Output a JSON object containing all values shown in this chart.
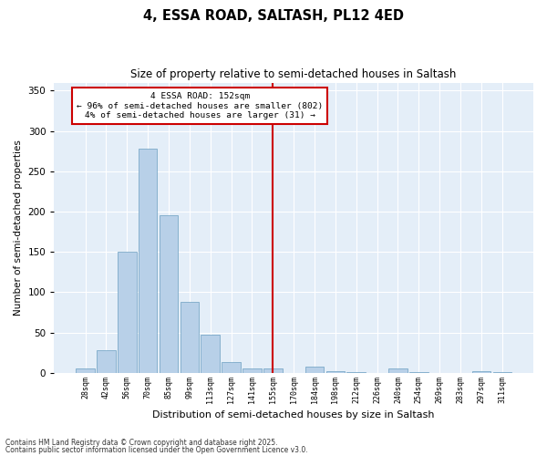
{
  "title": "4, ESSA ROAD, SALTASH, PL12 4ED",
  "subtitle": "Size of property relative to semi-detached houses in Saltash",
  "xlabel": "Distribution of semi-detached houses by size in Saltash",
  "ylabel": "Number of semi-detached properties",
  "annotation_title": "4 ESSA ROAD: 152sqm",
  "annotation_line1": "← 96% of semi-detached houses are smaller (802)",
  "annotation_line2": "4% of semi-detached houses are larger (31) →",
  "footnote1": "Contains HM Land Registry data © Crown copyright and database right 2025.",
  "footnote2": "Contains public sector information licensed under the Open Government Licence v3.0.",
  "bin_labels": [
    "28sqm",
    "42sqm",
    "56sqm",
    "70sqm",
    "85sqm",
    "99sqm",
    "113sqm",
    "127sqm",
    "141sqm",
    "155sqm",
    "170sqm",
    "184sqm",
    "198sqm",
    "212sqm",
    "226sqm",
    "240sqm",
    "254sqm",
    "269sqm",
    "283sqm",
    "297sqm",
    "311sqm"
  ],
  "bar_heights": [
    5,
    28,
    150,
    278,
    196,
    88,
    47,
    13,
    6,
    6,
    0,
    8,
    2,
    1,
    0,
    5,
    1,
    0,
    0,
    2,
    1
  ],
  "bar_color": "#b8d0e8",
  "bar_edge_color": "#6a9ec0",
  "line_color": "#cc0000",
  "annotation_box_color": "#cc0000",
  "bg_color": "#dce8f5",
  "plot_bg_color": "#e4eef8",
  "ylim": [
    0,
    360
  ],
  "yticks": [
    0,
    50,
    100,
    150,
    200,
    250,
    300,
    350
  ]
}
